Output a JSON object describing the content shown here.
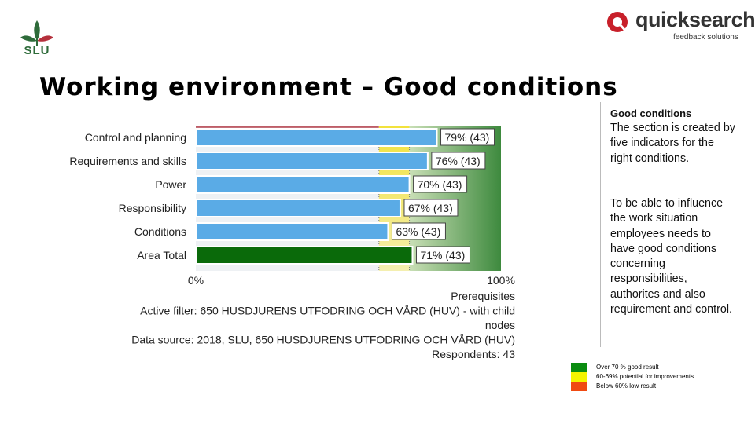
{
  "header": {
    "slu_text": "SLU",
    "quicksearch_name": "quicksearch",
    "quicksearch_sub": "feedback solutions"
  },
  "title": "Working environment – Good conditions",
  "sidebar": {
    "heading": "Good conditions",
    "paragraph1": "The section is created by five indicators for the right conditions.",
    "paragraph2": "To be able to influence the work situation employees needs to have good conditions concerning responsibilities, authorites and also requirement and control."
  },
  "legend": [
    {
      "label": "Over 70 % good result",
      "color": "#0a8c10"
    },
    {
      "label": "60-69% potential for improvements",
      "color": "#f4f400"
    },
    {
      "label": "Below 60% low result",
      "color": "#f04a12"
    }
  ],
  "chart_data": {
    "type": "bar",
    "orientation": "horizontal",
    "categories": [
      "Control and planning",
      "Requirements and skills",
      "Power",
      "Responsibility",
      "Conditions",
      "Area Total"
    ],
    "values": [
      79,
      76,
      70,
      67,
      63,
      71
    ],
    "labels": [
      "79% (43)",
      "76% (43)",
      "70% (43)",
      "67% (43)",
      "63% (43)",
      "71% (43)"
    ],
    "highlight_index": 5,
    "xlim": [
      0,
      100
    ],
    "tick_labels": [
      "0%",
      "100%"
    ],
    "bar_color": "#5aabe6",
    "total_bar_color": "#0a6a0a",
    "zones": [
      {
        "from": 0,
        "to": 60,
        "color": "#b5404c"
      },
      {
        "from": 60,
        "to": 70,
        "color": "#f2e23a"
      },
      {
        "from": 70,
        "to": 100,
        "color": "#3e8a3e"
      }
    ],
    "footnotes": [
      "Prerequisites",
      "Active filter: 650 HUSDJURENS UTFODRING OCH VÅRD (HUV) - with child",
      "nodes",
      "Data source: 2018, SLU, 650 HUSDJURENS UTFODRING OCH VÅRD (HUV)",
      "Respondents: 43"
    ]
  }
}
